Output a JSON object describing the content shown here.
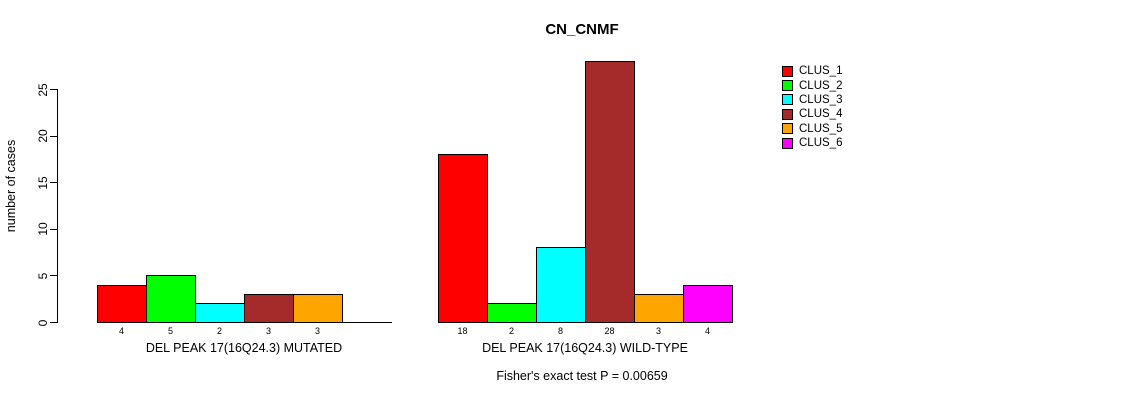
{
  "title": "CN_CNMF",
  "footer": "Fisher's exact test P = 0.00659",
  "chart_data": {
    "type": "bar",
    "title": "CN_CNMF",
    "ylabel": "number of cases",
    "xlabel": "",
    "ylim": [
      0,
      28
    ],
    "yticks": [
      0,
      5,
      10,
      15,
      20,
      25
    ],
    "grid": false,
    "legend_position": "right-outside",
    "series_names": [
      "CLUS_1",
      "CLUS_2",
      "CLUS_3",
      "CLUS_4",
      "CLUS_5",
      "CLUS_6"
    ],
    "series_colors": [
      "#FF0000",
      "#00FF00",
      "#00FFFF",
      "#A52A2A",
      "#FFA500",
      "#FF00FF"
    ],
    "groups": [
      {
        "label": "DEL PEAK 17(16Q24.3) MUTATED",
        "values": [
          4,
          5,
          2,
          3,
          3,
          0
        ],
        "bar_value_labels": [
          "4",
          "5",
          "2",
          "3",
          "3",
          ""
        ]
      },
      {
        "label": "DEL PEAK 17(16Q24.3) WILD-TYPE",
        "values": [
          18,
          2,
          8,
          28,
          3,
          4
        ],
        "bar_value_labels": [
          "18",
          "2",
          "8",
          "28",
          "3",
          "4"
        ]
      }
    ],
    "annotation": "Fisher's exact test P = 0.00659"
  }
}
